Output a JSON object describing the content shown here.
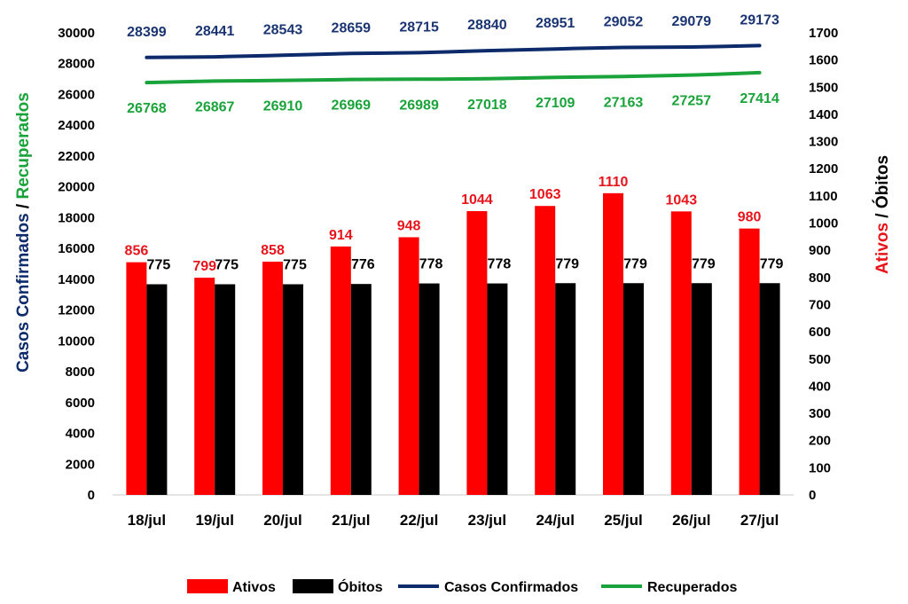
{
  "chart_data": {
    "type": "bar",
    "categories": [
      "18/jul",
      "19/jul",
      "20/jul",
      "21/jul",
      "22/jul",
      "23/jul",
      "24/jul",
      "25/jul",
      "26/jul",
      "27/jul"
    ],
    "series": [
      {
        "name": "Ativos",
        "type": "bar",
        "axis": "right",
        "color": "#ff0000",
        "values": [
          856,
          799,
          858,
          914,
          948,
          1044,
          1063,
          1110,
          1043,
          980
        ]
      },
      {
        "name": "Óbitos",
        "type": "bar",
        "axis": "right",
        "color": "#000000",
        "values": [
          775,
          775,
          775,
          776,
          778,
          778,
          779,
          779,
          779,
          779
        ]
      },
      {
        "name": "Casos Confirmados",
        "type": "line",
        "axis": "left",
        "color": "#0d2a6b",
        "values": [
          28399,
          28441,
          28543,
          28659,
          28715,
          28840,
          28951,
          29052,
          29079,
          29173
        ]
      },
      {
        "name": "Recuperados",
        "type": "line",
        "axis": "left",
        "color": "#1aa33a",
        "values": [
          26768,
          26867,
          26910,
          26969,
          26989,
          27018,
          27109,
          27163,
          27257,
          27414
        ]
      }
    ],
    "y_left": {
      "label_part1": "Casos Confirmados",
      "label_sep": " / ",
      "label_part2": "Recuperados",
      "color_part1": "#0d2a6b",
      "color_part2": "#1aa33a",
      "min": 0,
      "max": 30000,
      "step": 2000
    },
    "y_right": {
      "label_part1": "Ativos",
      "label_sep": " / ",
      "label_part2": "Óbitos",
      "color_part1": "#e8141c",
      "color_part2": "#000000",
      "min": 0,
      "max": 1700,
      "step": 100
    },
    "label_colors": {
      "Ativos": "#e8141c",
      "Óbitos": "#000000",
      "Casos Confirmados": "#1a3572",
      "Recuperados": "#1aa33a"
    },
    "legend_position": "bottom",
    "grid": false
  }
}
